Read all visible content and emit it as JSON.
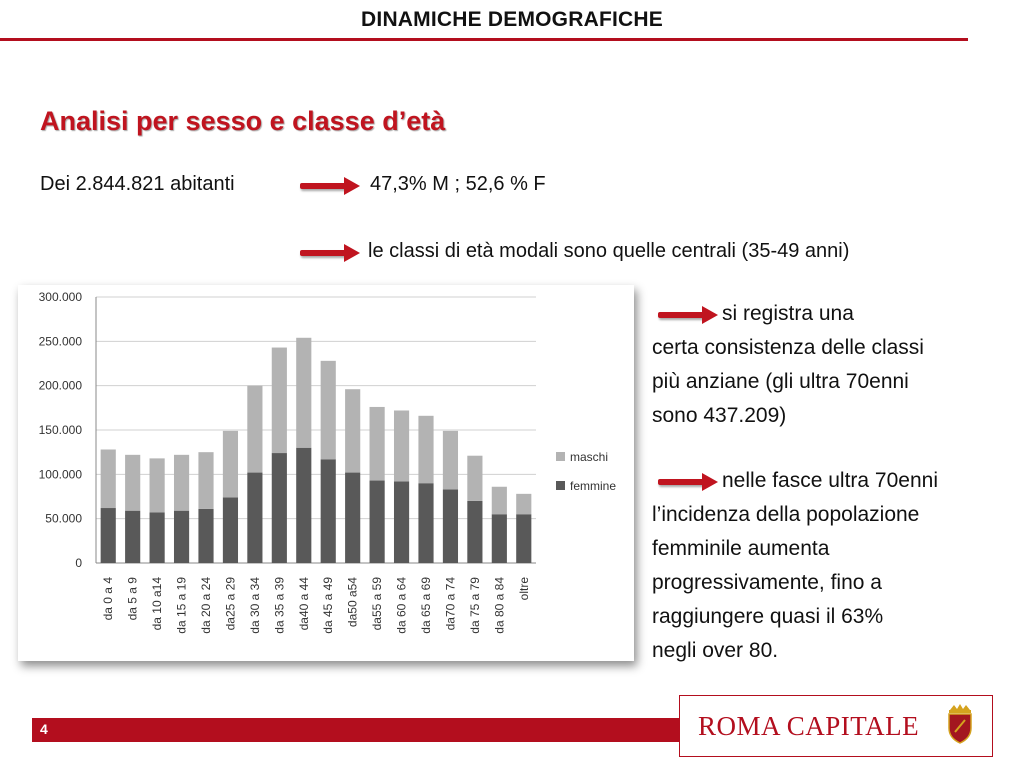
{
  "header": {
    "title": "DINAMICHE DEMOGRAFICHE"
  },
  "section": {
    "title": "Analisi per sesso e classe d’età"
  },
  "stats": {
    "lead": "Dei 2.844.821 abitanti",
    "result": "47,3% M ; 52,6 % F",
    "modal": "le classi di età modali sono quelle centrali (35-49 anni)"
  },
  "notes": {
    "elderly_count": {
      "lines": [
        "si registra una",
        "certa consistenza delle classi",
        "più anziane (gli ultra 70enni",
        "sono 437.209)"
      ]
    },
    "female_share": {
      "lines": [
        "nelle fasce ultra 70enni",
        "l’incidenza della popolazione",
        "femminile aumenta",
        "progressivamente,  fino a",
        "raggiungere quasi il 63%",
        "negli over 80."
      ]
    }
  },
  "footer": {
    "page_number": "4",
    "logo": "ROMA CAPITALE"
  },
  "icons": {
    "arrow": "red-arrow-icon",
    "crest": "rome-crest-icon"
  },
  "colors": {
    "accent": "#b30e1e",
    "maschi": "#b3b3b3",
    "femmine": "#595959"
  },
  "chart_data": {
    "type": "bar",
    "stacked": true,
    "categories": [
      "da 0 a 4",
      "da 5 a 9",
      "da 10 a14",
      "da 15 a 19",
      "da 20 a 24",
      "da25 a 29",
      "da 30 a 34",
      "da 35 a 39",
      "da40 a 44",
      "da 45 a 49",
      "da50 a54",
      "da55 a 59",
      "da 60 a 64",
      "da 65 a 69",
      "da70 a 74",
      "da 75 a 79",
      "da 80 a 84",
      "oltre"
    ],
    "series": [
      {
        "name": "femmine",
        "values": [
          62000,
          59000,
          57000,
          59000,
          61000,
          74000,
          102000,
          124000,
          130000,
          117000,
          102000,
          93000,
          92000,
          90000,
          83000,
          70000,
          55000,
          55000
        ]
      },
      {
        "name": "maschi",
        "values": [
          66000,
          63000,
          61000,
          63000,
          64000,
          75000,
          98000,
          119000,
          124000,
          111000,
          94000,
          83000,
          80000,
          76000,
          66000,
          51000,
          31000,
          23000
        ]
      }
    ],
    "yticks": [
      "300.000",
      "250.000",
      "200.000",
      "150.000",
      "100.000",
      "50.000",
      "0"
    ],
    "ylim": [
      0,
      300000
    ],
    "grid": true,
    "legend": "right"
  }
}
